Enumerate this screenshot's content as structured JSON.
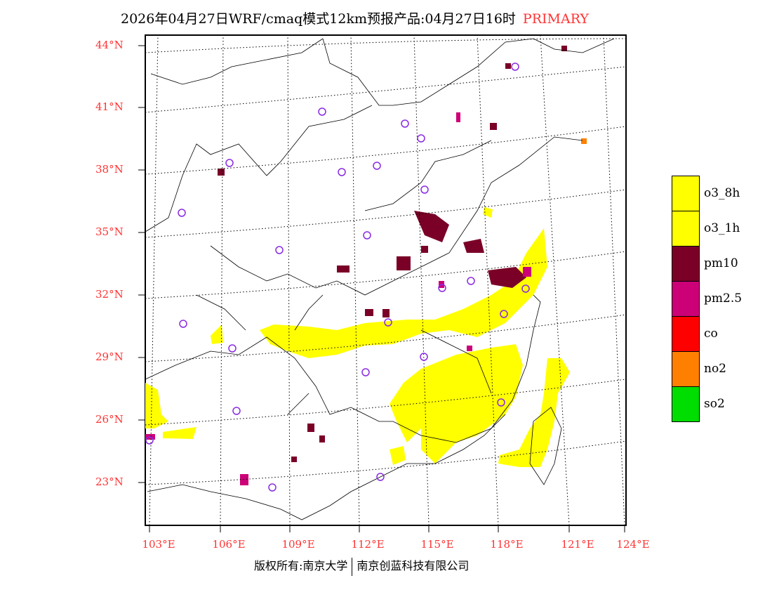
{
  "title": {
    "text": "2026年04月27日WRF/cmaq模式12km预报产品:04月27日16时",
    "tag": "PRIMARY"
  },
  "lat_labels": [
    "44°N",
    "41°N",
    "38°N",
    "35°N",
    "32°N",
    "29°N",
    "26°N",
    "23°N"
  ],
  "lon_labels": [
    "103°E",
    "106°E",
    "109°E",
    "112°E",
    "115°E",
    "118°E",
    "121°E",
    "124°E"
  ],
  "legend": [
    {
      "label": "o3_8h",
      "color": "#ffff00"
    },
    {
      "label": "o3_1h",
      "color": "#ffff00"
    },
    {
      "label": "pm10",
      "color": "#7a0028"
    },
    {
      "label": "pm2.5",
      "color": "#cc0077"
    },
    {
      "label": "co",
      "color": "#ff0000"
    },
    {
      "label": "no2",
      "color": "#ff8000"
    },
    {
      "label": "so2",
      "color": "#00dd00"
    }
  ],
  "copyright": {
    "left": "版权所有:南京大学",
    "right": "南京创蓝科技有限公司"
  }
}
